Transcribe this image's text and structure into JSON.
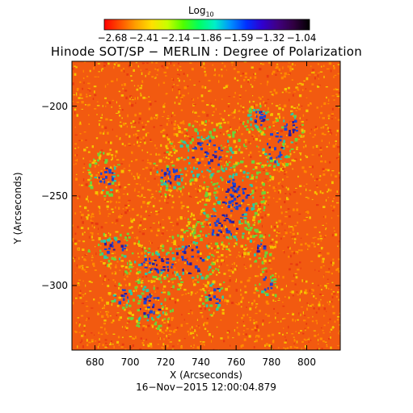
{
  "colorbar": {
    "label": "Log",
    "label_subscript": "10",
    "ticks": [
      "−2.68",
      "−2.41",
      "−2.14",
      "−1.86",
      "−1.59",
      "−1.32",
      "−1.04"
    ],
    "colors": [
      "#ff0000",
      "#ff5000",
      "#ffa000",
      "#ffe000",
      "#c8ff00",
      "#50ff00",
      "#00ff60",
      "#00f0c8",
      "#0090ff",
      "#0030ff",
      "#3000d0",
      "#400080",
      "#300040",
      "#000000"
    ]
  },
  "title": "Hinode SOT/SP − MERLIN : Degree of Polarization",
  "image": {
    "xlabel": "X (Arcseconds)",
    "ylabel": "Y (Arcseconds)",
    "x_ticks": [
      680,
      700,
      720,
      740,
      760,
      780,
      800
    ],
    "y_ticks": [
      -200,
      -250,
      -300
    ],
    "xlim": [
      667,
      819
    ],
    "ylim": [
      -336,
      -175
    ],
    "colors": {
      "background": "#f25a10",
      "speckle_a": "#ff8a00",
      "speckle_b": "#f5c400",
      "speckle_c": "#e83a10",
      "green": "#6cd33a",
      "cyan": "#28c8a8",
      "blue": "#1a44d8",
      "deep": "#2a1aa0"
    }
  },
  "timestamp": "16−Nov−2015  12:00:04.879"
}
